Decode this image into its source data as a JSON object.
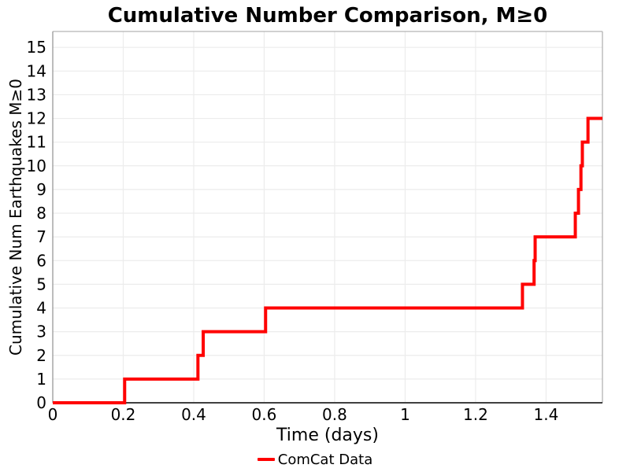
{
  "page": {
    "background": "#ffffff"
  },
  "chart_data": {
    "type": "step",
    "title": "Cumulative Number Comparison, M≥0",
    "xlabel": "Time (days)",
    "ylabel": "Cumulative Num Earthquakes M≥0",
    "xlim": [
      0,
      1.56
    ],
    "ylim": [
      0,
      15.67
    ],
    "xticks": {
      "values": [
        0,
        0.2,
        0.4,
        0.6,
        0.8,
        1,
        1.2,
        1.4
      ],
      "labels": [
        "0",
        "0.2",
        "0.4",
        "0.6",
        "0.8",
        "1",
        "1.2",
        "1.4"
      ]
    },
    "yticks": {
      "values": [
        0,
        1,
        2,
        3,
        4,
        5,
        6,
        7,
        8,
        9,
        10,
        11,
        12,
        13,
        14,
        15
      ],
      "labels": [
        "0",
        "1",
        "2",
        "3",
        "4",
        "5",
        "6",
        "7",
        "8",
        "9",
        "10",
        "11",
        "12",
        "13",
        "14",
        "15"
      ]
    },
    "grid": true,
    "legend": {
      "position": "bottom-center",
      "entries": [
        {
          "label": "ComCat Data",
          "color": "#ff0000"
        }
      ]
    },
    "series": [
      {
        "name": "ComCat Data",
        "color": "#ff0000",
        "line_width": 4,
        "start": [
          0,
          0
        ],
        "end_time": 1.56,
        "events": [
          [
            0.204,
            1
          ],
          [
            0.412,
            2
          ],
          [
            0.427,
            3
          ],
          [
            0.604,
            4
          ],
          [
            1.333,
            5
          ],
          [
            1.366,
            6
          ],
          [
            1.369,
            7
          ],
          [
            1.483,
            8
          ],
          [
            1.492,
            9
          ],
          [
            1.499,
            10
          ],
          [
            1.503,
            11
          ],
          [
            1.519,
            12
          ]
        ]
      }
    ],
    "colors": {
      "grid": "#ececec",
      "spine_left": "#999999",
      "spine_top": "#b3b3b3",
      "spine_right": "#b3b3b3",
      "spine_bottom": "#404040",
      "text": "#000000"
    }
  }
}
